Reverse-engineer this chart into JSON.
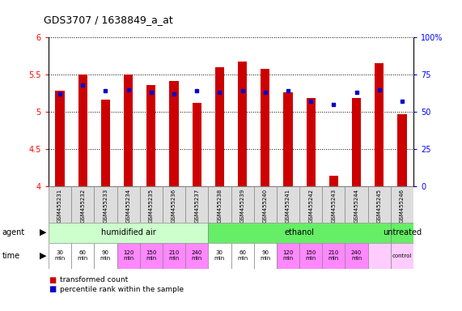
{
  "title": "GDS3707 / 1638849_a_at",
  "samples": [
    "GSM455231",
    "GSM455232",
    "GSM455233",
    "GSM455234",
    "GSM455235",
    "GSM455236",
    "GSM455237",
    "GSM455238",
    "GSM455239",
    "GSM455240",
    "GSM455241",
    "GSM455242",
    "GSM455243",
    "GSM455244",
    "GSM455245",
    "GSM455246"
  ],
  "bar_values": [
    5.29,
    5.5,
    5.17,
    5.5,
    5.36,
    5.41,
    5.12,
    5.6,
    5.67,
    5.58,
    5.26,
    5.19,
    4.14,
    5.19,
    5.65,
    4.97
  ],
  "percentile_values": [
    62,
    68,
    64,
    65,
    63,
    62,
    64,
    63,
    64,
    63,
    64,
    57,
    55,
    63,
    65,
    57
  ],
  "bar_color": "#cc0000",
  "percentile_color": "#0000cc",
  "ylim": [
    4.0,
    6.0
  ],
  "yticks": [
    4.0,
    4.5,
    5.0,
    5.5,
    6.0
  ],
  "ytick_labels": [
    "4",
    "4.5",
    "5",
    "5.5",
    "6"
  ],
  "y2lim": [
    0,
    100
  ],
  "y2ticks": [
    0,
    25,
    50,
    75,
    100
  ],
  "y2ticklabels": [
    "0",
    "25",
    "50",
    "75",
    "100%"
  ],
  "agent_groups": [
    {
      "label": "humidified air",
      "start": 0,
      "end": 7,
      "color": "#ccffcc"
    },
    {
      "label": "ethanol",
      "start": 7,
      "end": 15,
      "color": "#66ee66"
    },
    {
      "label": "untreated",
      "start": 15,
      "end": 16,
      "color": "#66ee66"
    }
  ],
  "time_data": [
    {
      "label": "30\nmin",
      "color": "#ffffff"
    },
    {
      "label": "60\nmin",
      "color": "#ffffff"
    },
    {
      "label": "90\nmin",
      "color": "#ffffff"
    },
    {
      "label": "120\nmin",
      "color": "#ff88ff"
    },
    {
      "label": "150\nmin",
      "color": "#ff88ff"
    },
    {
      "label": "210\nmin",
      "color": "#ff88ff"
    },
    {
      "label": "240\nmin",
      "color": "#ff88ff"
    },
    {
      "label": "30\nmin",
      "color": "#ffffff"
    },
    {
      "label": "60\nmin",
      "color": "#ffffff"
    },
    {
      "label": "90\nmin",
      "color": "#ffffff"
    },
    {
      "label": "120\nmin",
      "color": "#ff88ff"
    },
    {
      "label": "150\nmin",
      "color": "#ff88ff"
    },
    {
      "label": "210\nmin",
      "color": "#ff88ff"
    },
    {
      "label": "240\nmin",
      "color": "#ff88ff"
    },
    {
      "label": "",
      "color": "#ffccff"
    },
    {
      "label": "control",
      "color": "#ffccff"
    }
  ],
  "bar_width": 0.4,
  "bg_color": "#ffffff",
  "sample_bg": "#dddddd",
  "title_fontsize": 9,
  "axis_fontsize": 7,
  "label_fontsize": 6,
  "bar_border_color": "#880000"
}
